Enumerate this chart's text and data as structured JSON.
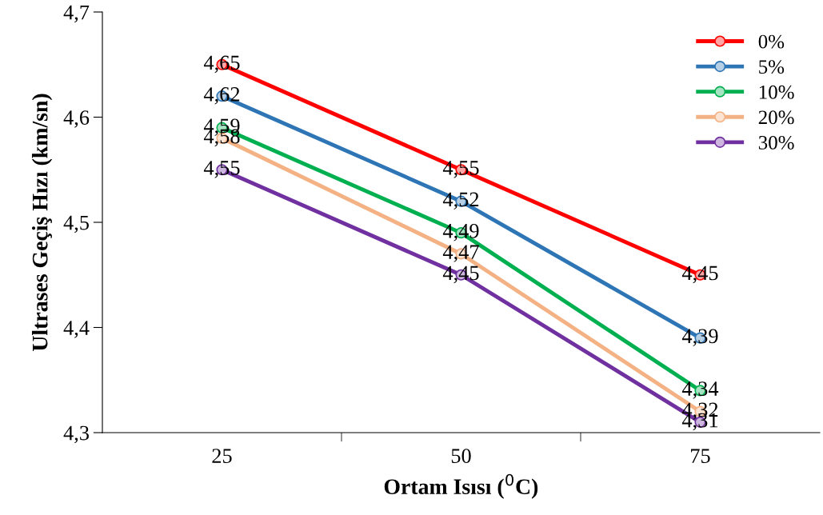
{
  "chart_data": {
    "type": "line",
    "xlabel": "Ortam Isısı ($^{0}$C)",
    "ylabel": "Ultrases Geçiş Hızı (km/sn)",
    "categories": [
      "25",
      "50",
      "75"
    ],
    "series": [
      {
        "name": "0%",
        "color": "#ff0000",
        "values": [
          4.65,
          4.55,
          4.45
        ],
        "value_labels": [
          "4,65",
          "4,55",
          "4,45"
        ]
      },
      {
        "name": "5%",
        "color": "#2e75b6",
        "values": [
          4.62,
          4.52,
          4.39
        ],
        "value_labels": [
          "4,62",
          "4,52",
          "4,39"
        ]
      },
      {
        "name": "10%",
        "color": "#00b050",
        "values": [
          4.59,
          4.49,
          4.34
        ],
        "value_labels": [
          "4,59",
          "4,49",
          "4,34"
        ]
      },
      {
        "name": "20%",
        "color": "#f4b183",
        "values": [
          4.58,
          4.47,
          4.32
        ],
        "value_labels": [
          "4,58",
          "4,47",
          "4,32"
        ]
      },
      {
        "name": "30%",
        "color": "#7030a0",
        "values": [
          4.55,
          4.45,
          4.31
        ],
        "value_labels": [
          "4,55",
          "4,45",
          "4,31"
        ]
      }
    ],
    "ylim": [
      4.3,
      4.7
    ],
    "yticks": [
      {
        "value": 4.3,
        "label": "4,3"
      },
      {
        "value": 4.4,
        "label": "4,4"
      },
      {
        "value": 4.5,
        "label": "4,5"
      },
      {
        "value": 4.6,
        "label": "4,6"
      },
      {
        "value": 4.7,
        "label": "4,7"
      }
    ],
    "marker": "circle",
    "line_style": "solid",
    "grid": false,
    "legend": "top right"
  }
}
